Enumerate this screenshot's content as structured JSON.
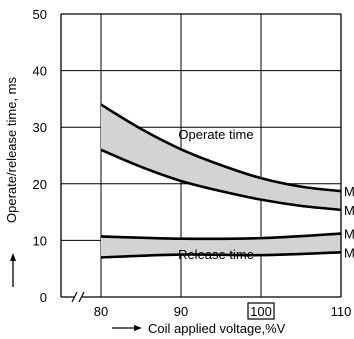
{
  "chart_data": {
    "type": "line",
    "title": "",
    "xlabel": "Coil applied voltage,%V",
    "ylabel": "Operate/release time, ms",
    "xlim": [
      75,
      110
    ],
    "ylim": [
      0,
      50
    ],
    "x_ticks": [
      80,
      90,
      100,
      110
    ],
    "x_tick_labels": [
      "80",
      "90",
      "100",
      "110"
    ],
    "x_tick_boxed": "100",
    "y_ticks": [
      0,
      10,
      20,
      30,
      40,
      50
    ],
    "y_tick_labels": [
      "0",
      "10",
      "20",
      "30",
      "40",
      "50"
    ],
    "grid": true,
    "axis_break": "between 0 and 80 on x axis",
    "bands": [
      {
        "label": "Operate time",
        "upper": {
          "end_label": "M",
          "x": [
            80,
            85,
            90,
            95,
            100,
            105,
            110
          ],
          "y": [
            34,
            29.7,
            26.1,
            23.3,
            21.0,
            19.5,
            18.7
          ]
        },
        "lower": {
          "end_label": "M",
          "x": [
            80,
            85,
            90,
            95,
            100,
            105,
            110
          ],
          "y": [
            26,
            23.0,
            20.5,
            18.7,
            17.2,
            16.1,
            15.4
          ]
        },
        "fill_color": "#d3d3d3"
      },
      {
        "label": "Release time",
        "upper": {
          "end_label": "M",
          "x": [
            80,
            90,
            100,
            110
          ],
          "y": [
            10.7,
            10.3,
            10.4,
            11.2
          ]
        },
        "lower": {
          "end_label": "M",
          "x": [
            80,
            90,
            100,
            110
          ],
          "y": [
            7.0,
            7.5,
            7.4,
            7.9
          ]
        },
        "fill_color": "#d3d3d3"
      }
    ],
    "colors": {
      "line": "#000000",
      "fill": "#d3d3d3",
      "grid": "#000000"
    }
  }
}
